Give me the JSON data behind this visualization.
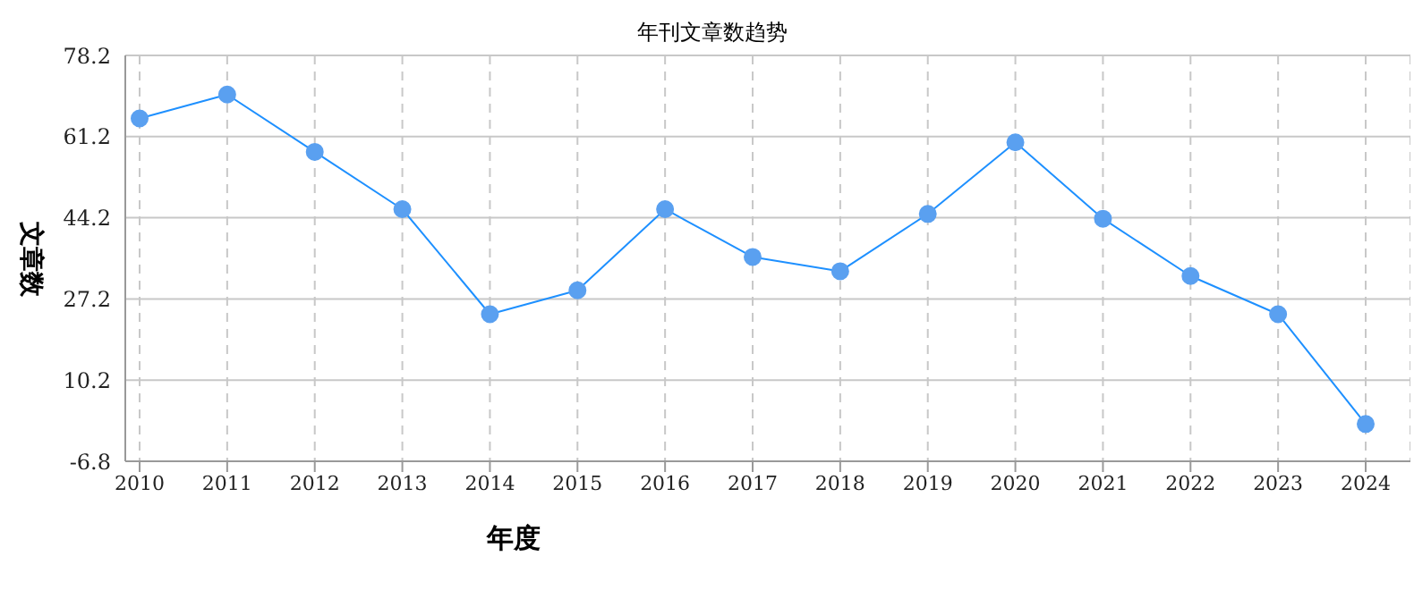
{
  "chart_data": {
    "type": "line",
    "title": "年刊文章数趋势",
    "xlabel": "年度",
    "ylabel": "文章数",
    "categories": [
      "2010",
      "2011",
      "2012",
      "2013",
      "2014",
      "2015",
      "2016",
      "2017",
      "2018",
      "2019",
      "2020",
      "2021",
      "2022",
      "2023",
      "2024"
    ],
    "series": [
      {
        "color": "#1e90ff",
        "values": [
          65,
          70,
          58,
          46,
          24,
          29,
          46,
          36,
          33,
          45,
          60,
          44,
          32,
          24,
          1
        ]
      }
    ],
    "ylim": [
      -6.8,
      78.2
    ],
    "yticks": [
      -6.8,
      10.2,
      27.2,
      44.2,
      61.2,
      78.2
    ],
    "grid": true,
    "marker": "circle",
    "line_style": "solid"
  }
}
